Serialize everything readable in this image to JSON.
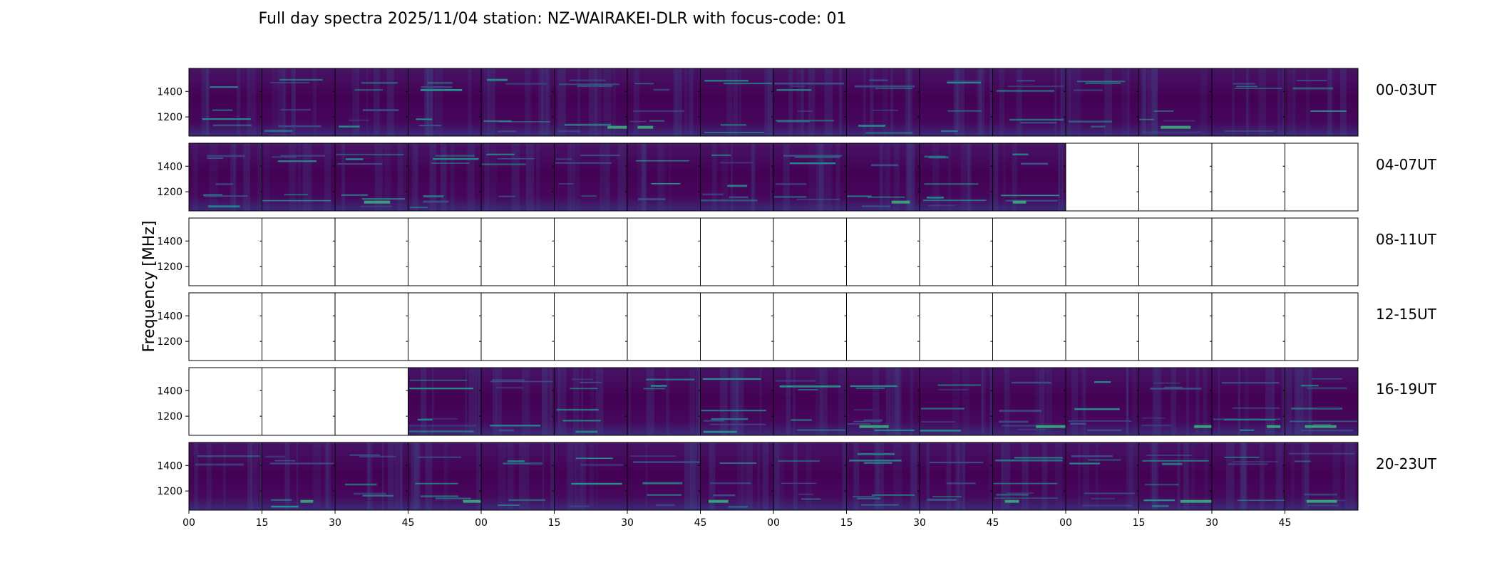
{
  "chart_data": {
    "type": "heatmap",
    "title": "Full day spectra 2025/11/04 station: NZ-WAIRAKEI-DLR with focus-code: 01",
    "ylabel": "Frequency [MHz]",
    "xlabel": "",
    "ylim": [
      1050,
      1580
    ],
    "y_ticks": [
      1200,
      1400
    ],
    "x_tick_labels": [
      "00",
      "15",
      "30",
      "45",
      "00",
      "15",
      "30",
      "45",
      "00",
      "15",
      "30",
      "45",
      "00",
      "15",
      "30",
      "45"
    ],
    "panels_per_row": 16,
    "rows": [
      {
        "label": "00-03UT",
        "available": [
          1,
          1,
          1,
          1,
          1,
          1,
          1,
          1,
          1,
          1,
          1,
          1,
          1,
          1,
          1,
          1
        ]
      },
      {
        "label": "04-07UT",
        "available": [
          1,
          1,
          1,
          1,
          1,
          1,
          1,
          1,
          1,
          1,
          1,
          1,
          0,
          0,
          0,
          0
        ]
      },
      {
        "label": "08-11UT",
        "available": [
          0,
          0,
          0,
          0,
          0,
          0,
          0,
          0,
          0,
          0,
          0,
          0,
          0,
          0,
          0,
          0
        ]
      },
      {
        "label": "12-15UT",
        "available": [
          0,
          0,
          0,
          0,
          0,
          0,
          0,
          0,
          0,
          0,
          0,
          0,
          0,
          0,
          0,
          0
        ]
      },
      {
        "label": "16-19UT",
        "available": [
          0,
          0,
          0,
          1,
          1,
          1,
          1,
          1,
          1,
          1,
          1,
          1,
          1,
          1,
          1,
          1
        ]
      },
      {
        "label": "20-23UT",
        "available": [
          1,
          1,
          1,
          1,
          1,
          1,
          1,
          1,
          1,
          1,
          1,
          1,
          1,
          1,
          1,
          1
        ]
      }
    ],
    "colormap": {
      "low": "#440154",
      "mid": "#31688e",
      "high": "#35b779"
    }
  }
}
